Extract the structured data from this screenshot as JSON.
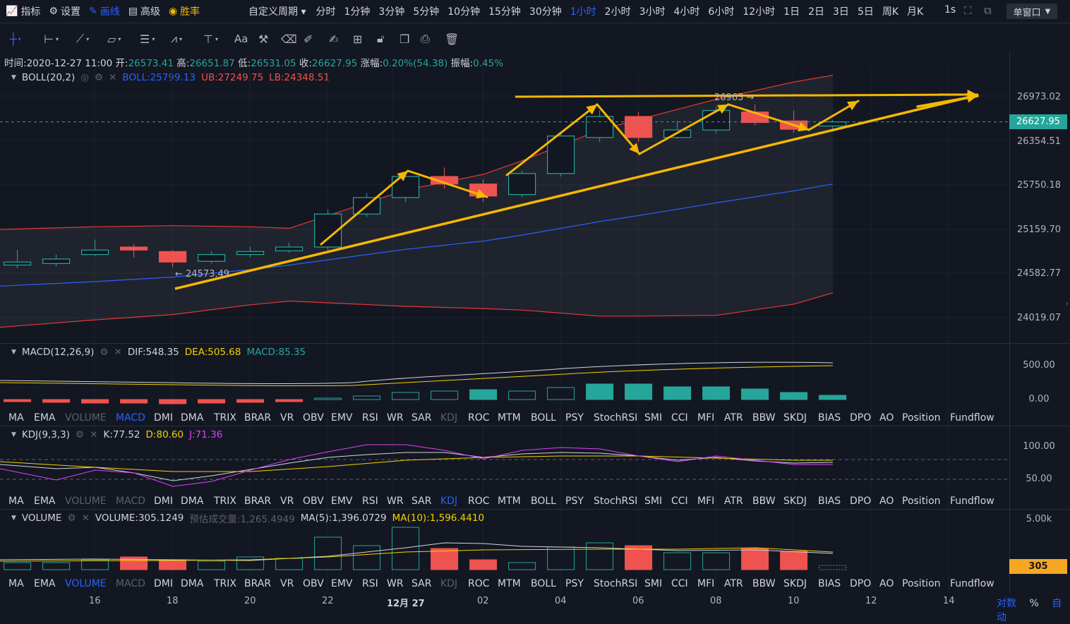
{
  "topbar": {
    "items": [
      {
        "icon": "chart-icon",
        "label": "指标"
      },
      {
        "icon": "gear-icon",
        "label": "设置"
      },
      {
        "icon": "pen-icon",
        "label": "画线"
      },
      {
        "icon": "calendar-icon",
        "label": "高级"
      },
      {
        "icon": "medal-icon",
        "label": "胜率"
      }
    ],
    "custom_period": "自定义周期",
    "periods": [
      "分时",
      "1分钟",
      "3分钟",
      "5分钟",
      "10分钟",
      "15分钟",
      "30分钟",
      "1小时",
      "2小时",
      "3小时",
      "4小时",
      "6小时",
      "12小时",
      "1日",
      "2日",
      "3日",
      "5日",
      "周K",
      "月K"
    ],
    "active_period": "1小时",
    "realtime": "1s",
    "window_mode": "单窗口"
  },
  "drawing_tools": [
    "crosshair-icon",
    "horizontal-ray-icon",
    "trend-line-icon",
    "rectangle-icon",
    "parallel-channel-icon",
    "wave-icon",
    "fib-icon",
    "Aa",
    "pattern-icon",
    "eraser-icon",
    "ruler-icon",
    "brush-icon",
    "grid-icon",
    "lock-icon",
    "copy-icon",
    "screenshot-icon",
    "trash-icon"
  ],
  "info": {
    "time_label": "时间:",
    "time": "2020-12-27 11:00",
    "open_label": "开:",
    "open": "26573.41",
    "high_label": "高:",
    "high": "26651.87",
    "low_label": "低:",
    "low": "26531.05",
    "close_label": "收:",
    "close": "26627.95",
    "change_label": "涨幅:",
    "change": "0.20%(54.38)",
    "amp_label": "振幅:",
    "amp": "0.45%"
  },
  "boll": {
    "name": "BOLL(20,2)",
    "boll": "BOLL:25799.13",
    "ub": "UB:27249.75",
    "lb": "LB:24348.51"
  },
  "price_axis": [
    "26973.02",
    "26354.51",
    "25750.18",
    "25159.70",
    "24582.77",
    "24019.07"
  ],
  "current_price": "26627.95",
  "annotations": {
    "low_marker": "← 24573.49",
    "high_marker": "26963 →"
  },
  "macd": {
    "name": "MACD(12,26,9)",
    "dif": "DIF:548.35",
    "dea": "DEA:505.68",
    "macd": "MACD:85.35",
    "axis": [
      "500.00",
      "0.00"
    ]
  },
  "kdj": {
    "name": "KDJ(9,3,3)",
    "k": "K:77.52",
    "d": "D:80.60",
    "j": "J:71.36",
    "axis": [
      "100.00",
      "50.00"
    ]
  },
  "volume": {
    "name": "VOLUME",
    "vol": "VOLUME:305.1249",
    "est_label": "预估成交量:",
    "est": "1,265.4949",
    "ma5": "MA(5):1,396.0729",
    "ma10": "MA(10):1,596.4410",
    "axis": "5.00k",
    "current": "305"
  },
  "indicators": [
    "MA",
    "EMA",
    "VOLUME",
    "MACD",
    "DMI",
    "DMA",
    "TRIX",
    "BRAR",
    "VR",
    "OBV",
    "EMV",
    "RSI",
    "WR",
    "SAR",
    "KDJ",
    "ROC",
    "MTM",
    "BOLL",
    "PSY",
    "StochRSI",
    "SMI",
    "CCI",
    "MFI",
    "ATR",
    "BBW",
    "SKDJ",
    "BIAS",
    "DPO",
    "AO",
    "Position",
    "Fundflow"
  ],
  "x_axis": [
    "16",
    "18",
    "20",
    "22",
    "12月 27",
    "02",
    "04",
    "06",
    "08",
    "10",
    "12",
    "14"
  ],
  "bottom_controls": [
    "对数",
    "%",
    "自动"
  ],
  "colors": {
    "up": "#26a69a",
    "down": "#ef5350",
    "accent": "#2962ff",
    "annotation": "#f5b800"
  }
}
